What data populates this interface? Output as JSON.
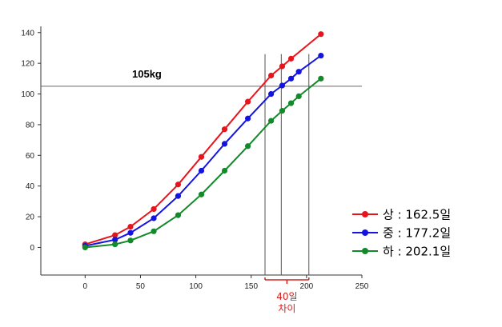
{
  "chart_data": {
    "type": "line",
    "x_ticks": [
      0,
      50,
      100,
      150,
      200,
      250
    ],
    "y_ticks": [
      0,
      20,
      40,
      60,
      80,
      100,
      120,
      140
    ],
    "xlim": [
      -40,
      250
    ],
    "ylim": [
      -18,
      143
    ],
    "grid": false,
    "reference_line": {
      "y": 105,
      "label": "105kg"
    },
    "series": [
      {
        "name": "상",
        "legend_value": " : 162.5일",
        "color": "#e8141c",
        "points": [
          [
            0,
            2
          ],
          [
            27,
            8
          ],
          [
            41,
            13.5
          ],
          [
            62,
            25
          ],
          [
            84,
            41
          ],
          [
            105,
            59
          ],
          [
            126,
            77
          ],
          [
            147,
            95
          ],
          [
            168,
            112
          ],
          [
            178,
            118
          ],
          [
            186,
            123
          ],
          [
            213,
            139
          ]
        ]
      },
      {
        "name": "중",
        "legend_value": " : 177.2일",
        "color": "#1414e0",
        "points": [
          [
            0,
            1
          ],
          [
            27,
            5
          ],
          [
            41,
            9.5
          ],
          [
            62,
            19
          ],
          [
            84,
            33.5
          ],
          [
            105,
            50
          ],
          [
            126,
            67.5
          ],
          [
            147,
            84
          ],
          [
            168,
            100
          ],
          [
            178,
            105.5
          ],
          [
            186,
            110
          ],
          [
            193,
            114.5
          ],
          [
            213,
            125
          ]
        ]
      },
      {
        "name": "하",
        "legend_value": " : 202.1일",
        "color": "#128a2a",
        "points": [
          [
            0,
            0
          ],
          [
            27,
            2
          ],
          [
            41,
            4.5
          ],
          [
            62,
            10.5
          ],
          [
            84,
            21
          ],
          [
            105,
            34.5
          ],
          [
            126,
            50
          ],
          [
            147,
            66
          ],
          [
            168,
            82.5
          ],
          [
            178,
            89
          ],
          [
            186,
            94
          ],
          [
            193,
            98.5
          ],
          [
            213,
            110
          ]
        ]
      }
    ],
    "markers": [
      162.5,
      177.2,
      202.1
    ],
    "annotation": {
      "line1": "40일",
      "line2": "차이"
    }
  }
}
